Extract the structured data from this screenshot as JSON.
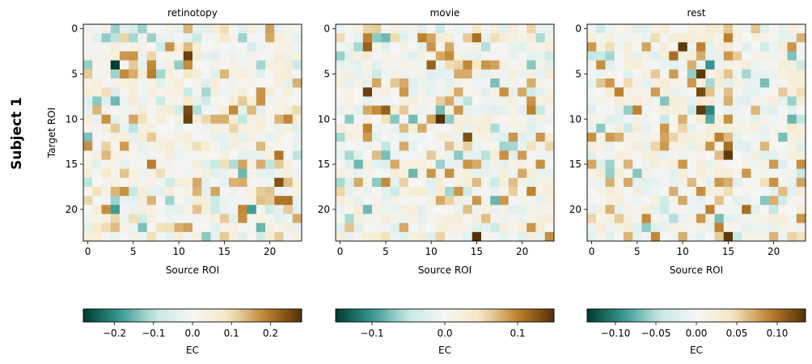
{
  "figure": {
    "row_label": "Subject 1"
  },
  "colormap": {
    "name": "BrBG_r",
    "stops": [
      "#003c30",
      "#35978f",
      "#c7eae5",
      "#f5f5f5",
      "#f6e8c3",
      "#bf812d",
      "#543005"
    ]
  },
  "chart_data": [
    {
      "type": "heatmap",
      "title": "retinotopy",
      "xlabel": "Source ROI",
      "ylabel": "Target ROI",
      "n": 24,
      "xticks": [
        0,
        5,
        10,
        15,
        20
      ],
      "yticks": [
        0,
        5,
        10,
        15,
        20
      ],
      "vmin": -0.28,
      "vmax": 0.28,
      "cbar_label": "EC",
      "cbar_ticks": [
        -0.2,
        -0.1,
        0.0,
        0.1,
        0.2
      ],
      "cbar_tick_labels": [
        "−0.2",
        "−0.1",
        "0.0",
        "0.1",
        "0.2"
      ],
      "values": [],
      "seed": 11,
      "hot_cells": [
        [
          0,
          3,
          -0.12
        ],
        [
          0,
          5,
          -0.07
        ],
        [
          0,
          6,
          -0.12
        ],
        [
          0,
          11,
          0.14
        ],
        [
          1,
          3,
          -0.1
        ],
        [
          1,
          7,
          -0.12
        ],
        [
          1,
          15,
          0.08
        ],
        [
          1,
          17,
          -0.12
        ],
        [
          2,
          9,
          0.17
        ],
        [
          2,
          18,
          -0.06
        ],
        [
          3,
          11,
          0.26
        ],
        [
          4,
          3,
          -0.28
        ],
        [
          4,
          5,
          0.12
        ],
        [
          4,
          7,
          0.18
        ],
        [
          5,
          7,
          0.19
        ],
        [
          5,
          11,
          0.09
        ],
        [
          5,
          3,
          -0.12
        ],
        [
          6,
          1,
          0.05
        ],
        [
          7,
          3,
          -0.06
        ],
        [
          7,
          7,
          0.05
        ],
        [
          8,
          3,
          -0.15
        ],
        [
          8,
          11,
          0.08
        ],
        [
          8,
          17,
          0.12
        ],
        [
          9,
          1,
          0.14
        ],
        [
          9,
          11,
          0.25
        ],
        [
          10,
          11,
          0.26
        ],
        [
          10,
          21,
          0.14
        ],
        [
          11,
          3,
          0.12
        ],
        [
          11,
          5,
          -0.1
        ],
        [
          12,
          7,
          0.12
        ],
        [
          13,
          12,
          0.1
        ],
        [
          14,
          21,
          0.2
        ],
        [
          14,
          23,
          -0.1
        ],
        [
          15,
          7,
          0.19
        ],
        [
          15,
          15,
          0.1
        ],
        [
          16,
          2,
          0.08
        ],
        [
          17,
          21,
          0.24
        ],
        [
          18,
          12,
          0.14
        ],
        [
          18,
          19,
          0.12
        ],
        [
          19,
          3,
          -0.12
        ],
        [
          19,
          21,
          0.2
        ],
        [
          19,
          22,
          0.2
        ],
        [
          20,
          3,
          -0.18
        ],
        [
          20,
          17,
          0.18
        ],
        [
          20,
          18,
          -0.18
        ],
        [
          20,
          22,
          0.12
        ],
        [
          21,
          5,
          0.1
        ],
        [
          21,
          15,
          0.12
        ],
        [
          22,
          1,
          0.08
        ],
        [
          22,
          9,
          0.1
        ],
        [
          23,
          7,
          0.1
        ],
        [
          23,
          15,
          0.12
        ],
        [
          23,
          21,
          0.12
        ]
      ]
    },
    {
      "type": "heatmap",
      "title": "movie",
      "xlabel": "Source ROI",
      "ylabel": "",
      "n": 24,
      "xticks": [
        0,
        5,
        10,
        15,
        20
      ],
      "yticks": [
        0,
        5,
        10,
        15,
        20
      ],
      "vmin": -0.15,
      "vmax": 0.15,
      "cbar_label": "EC",
      "cbar_ticks": [
        -0.1,
        0.0,
        0.1
      ],
      "cbar_tick_labels": [
        "−0.1",
        "0.0",
        "0.1"
      ],
      "values": [],
      "seed": 23,
      "hot_cells": [
        [
          0,
          3,
          0.06
        ],
        [
          0,
          11,
          -0.05
        ],
        [
          0,
          15,
          0.05
        ],
        [
          1,
          3,
          0.1
        ],
        [
          1,
          9,
          0.1
        ],
        [
          1,
          15,
          0.11
        ],
        [
          2,
          3,
          0.12
        ],
        [
          2,
          12,
          0.08
        ],
        [
          3,
          11,
          0.08
        ],
        [
          4,
          10,
          0.12
        ],
        [
          4,
          15,
          0.05
        ],
        [
          5,
          13,
          0.08
        ],
        [
          6,
          7,
          0.08
        ],
        [
          7,
          3,
          0.14
        ],
        [
          7,
          7,
          0.09
        ],
        [
          7,
          20,
          0.08
        ],
        [
          8,
          12,
          0.08
        ],
        [
          9,
          5,
          0.12
        ],
        [
          9,
          13,
          0.09
        ],
        [
          9,
          21,
          0.1
        ],
        [
          10,
          11,
          0.15
        ],
        [
          10,
          1,
          -0.07
        ],
        [
          11,
          3,
          0.1
        ],
        [
          11,
          9,
          0.08
        ],
        [
          12,
          14,
          0.13
        ],
        [
          12,
          19,
          0.09
        ],
        [
          13,
          7,
          0.08
        ],
        [
          14,
          4,
          0.07
        ],
        [
          15,
          6,
          0.08
        ],
        [
          15,
          15,
          0.08
        ],
        [
          16,
          10,
          0.09
        ],
        [
          16,
          20,
          0.08
        ],
        [
          17,
          2,
          0.08
        ],
        [
          17,
          19,
          0.07
        ],
        [
          18,
          13,
          0.09
        ],
        [
          18,
          21,
          0.1
        ],
        [
          19,
          15,
          0.09
        ],
        [
          19,
          11,
          0.08
        ],
        [
          20,
          3,
          -0.08
        ],
        [
          20,
          14,
          0.07
        ],
        [
          21,
          1,
          -0.06
        ],
        [
          21,
          16,
          0.07
        ],
        [
          22,
          7,
          0.08
        ],
        [
          22,
          21,
          0.09
        ],
        [
          23,
          15,
          0.15
        ],
        [
          23,
          11,
          0.06
        ]
      ]
    },
    {
      "type": "heatmap",
      "title": "rest",
      "xlabel": "Source ROI",
      "ylabel": "",
      "n": 24,
      "xticks": [
        0,
        5,
        10,
        15,
        20
      ],
      "yticks": [
        0,
        5,
        10,
        15,
        20
      ],
      "vmin": -0.135,
      "vmax": 0.135,
      "cbar_label": "EC",
      "cbar_ticks": [
        -0.1,
        -0.05,
        0.0,
        0.05,
        0.1
      ],
      "cbar_tick_labels": [
        "−0.10",
        "−0.05",
        "0.00",
        "0.05",
        "0.10"
      ],
      "values": [],
      "seed": 37,
      "hot_cells": [
        [
          0,
          15,
          0.06
        ],
        [
          1,
          7,
          0.05
        ],
        [
          1,
          15,
          0.09
        ],
        [
          2,
          10,
          0.13
        ],
        [
          2,
          12,
          0.09
        ],
        [
          3,
          9,
          0.1
        ],
        [
          3,
          15,
          0.08
        ],
        [
          4,
          11,
          0.07
        ],
        [
          4,
          13,
          -0.09
        ],
        [
          5,
          12,
          0.13
        ],
        [
          5,
          15,
          0.06
        ],
        [
          6,
          2,
          0.08
        ],
        [
          6,
          11,
          0.08
        ],
        [
          7,
          3,
          0.09
        ],
        [
          7,
          12,
          0.12
        ],
        [
          8,
          15,
          0.07
        ],
        [
          9,
          5,
          0.09
        ],
        [
          9,
          12,
          0.13
        ],
        [
          9,
          13,
          -0.1
        ],
        [
          10,
          13,
          -0.08
        ],
        [
          10,
          10,
          0.07
        ],
        [
          11,
          8,
          0.08
        ],
        [
          12,
          3,
          0.07
        ],
        [
          12,
          14,
          0.09
        ],
        [
          13,
          15,
          0.1
        ],
        [
          14,
          15,
          0.13
        ],
        [
          15,
          10,
          0.08
        ],
        [
          16,
          2,
          -0.06
        ],
        [
          16,
          17,
          0.08
        ],
        [
          17,
          14,
          0.08
        ],
        [
          18,
          9,
          0.07
        ],
        [
          19,
          20,
          0.07
        ],
        [
          20,
          13,
          0.09
        ],
        [
          20,
          17,
          0.1
        ],
        [
          21,
          12,
          0.08
        ],
        [
          22,
          14,
          0.09
        ],
        [
          23,
          15,
          0.13
        ],
        [
          23,
          10,
          0.07
        ]
      ]
    }
  ]
}
